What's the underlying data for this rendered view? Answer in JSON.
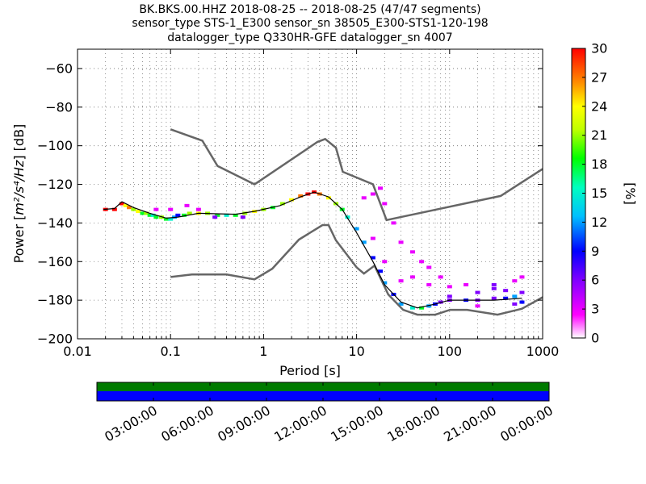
{
  "chart_data": {
    "type": "heatmap",
    "title_lines": [
      "BK.BKS.00.HHZ   2018-08-25 -- 2018-08-25  (47/47 segments)",
      "sensor_type STS-1_E300 sensor_sn 38505_E300-STS1-120-198",
      "datalogger_type Q330HR-GFE datalogger_sn 4007"
    ],
    "xlabel": "Period [s]",
    "ylabel_prefix": "Power [",
    "ylabel_math": "m²/s⁴/Hz",
    "ylabel_suffix": "] [dB]",
    "xscale": "log",
    "xlim": [
      0.01,
      1000
    ],
    "x_ticks": [
      {
        "value": 0.01,
        "label": "0.01"
      },
      {
        "value": 0.1,
        "label": "0.1"
      },
      {
        "value": 1,
        "label": "1"
      },
      {
        "value": 10,
        "label": "10"
      },
      {
        "value": 100,
        "label": "100"
      },
      {
        "value": 1000,
        "label": "1000"
      }
    ],
    "ylim": [
      -200,
      -50
    ],
    "y_ticks": [
      {
        "value": -60,
        "label": "−60"
      },
      {
        "value": -80,
        "label": "−80"
      },
      {
        "value": -100,
        "label": "−100"
      },
      {
        "value": -120,
        "label": "−120"
      },
      {
        "value": -140,
        "label": "−140"
      },
      {
        "value": -160,
        "label": "−160"
      },
      {
        "value": -180,
        "label": "−180"
      },
      {
        "value": -200,
        "label": "−200"
      }
    ],
    "grid": true,
    "colorbar": {
      "label": "[%]",
      "range": [
        0,
        30
      ],
      "ticks": [
        {
          "value": 0,
          "label": "0"
        },
        {
          "value": 3,
          "label": "3"
        },
        {
          "value": 6,
          "label": "6"
        },
        {
          "value": 9,
          "label": "9"
        },
        {
          "value": 12,
          "label": "12"
        },
        {
          "value": 15,
          "label": "15"
        },
        {
          "value": 18,
          "label": "18"
        },
        {
          "value": 21,
          "label": "21"
        },
        {
          "value": 24,
          "label": "24"
        },
        {
          "value": 27,
          "label": "27"
        },
        {
          "value": 30,
          "label": "30"
        }
      ]
    },
    "noise_models": {
      "color": "#666666",
      "high": [
        [
          0.1,
          -91.5
        ],
        [
          0.22,
          -97.4
        ],
        [
          0.32,
          -110.5
        ],
        [
          0.8,
          -120
        ],
        [
          3.8,
          -98
        ],
        [
          4.6,
          -96.5
        ],
        [
          6,
          -101
        ],
        [
          7.1,
          -113.5
        ],
        [
          15,
          -120
        ],
        [
          21,
          -138.5
        ],
        [
          354,
          -126
        ],
        [
          1000,
          -112
        ]
      ],
      "low": [
        [
          0.1,
          -168
        ],
        [
          0.17,
          -166.7
        ],
        [
          0.4,
          -166.7
        ],
        [
          0.8,
          -169.2
        ],
        [
          1.24,
          -163.7
        ],
        [
          2.4,
          -148.6
        ],
        [
          4.3,
          -141.1
        ],
        [
          5,
          -141.1
        ],
        [
          6,
          -149
        ],
        [
          10,
          -163
        ],
        [
          12,
          -166.2
        ],
        [
          15.6,
          -162.1
        ],
        [
          21.9,
          -177
        ],
        [
          31.6,
          -185
        ],
        [
          45,
          -187.5
        ],
        [
          70,
          -187.5
        ],
        [
          101,
          -185
        ],
        [
          154,
          -185
        ],
        [
          328,
          -187.5
        ],
        [
          600,
          -184.4
        ],
        [
          1000,
          -178.5
        ]
      ]
    },
    "mode_curve": [
      [
        0.019,
        -133
      ],
      [
        0.025,
        -132.5
      ],
      [
        0.03,
        -129
      ],
      [
        0.04,
        -132
      ],
      [
        0.06,
        -135
      ],
      [
        0.09,
        -137.5
      ],
      [
        0.12,
        -137
      ],
      [
        0.2,
        -135
      ],
      [
        0.5,
        -135.5
      ],
      [
        0.8,
        -134
      ],
      [
        1.5,
        -131
      ],
      [
        2.5,
        -126.5
      ],
      [
        3.5,
        -124
      ],
      [
        5,
        -126.5
      ],
      [
        7,
        -133
      ],
      [
        10,
        -145
      ],
      [
        15,
        -160
      ],
      [
        20,
        -172
      ],
      [
        30,
        -181
      ],
      [
        45,
        -184
      ],
      [
        70,
        -182
      ],
      [
        100,
        -180
      ],
      [
        300,
        -180
      ],
      [
        600,
        -179
      ]
    ],
    "density_cells": [
      {
        "period": 0.02,
        "db": -133,
        "percent": 30
      },
      {
        "period": 0.025,
        "db": -133,
        "percent": 30
      },
      {
        "period": 0.03,
        "db": -130,
        "percent": 30
      },
      {
        "period": 0.033,
        "db": -131,
        "percent": 24
      },
      {
        "period": 0.036,
        "db": -132,
        "percent": 27
      },
      {
        "period": 0.04,
        "db": -133,
        "percent": 21
      },
      {
        "period": 0.045,
        "db": -134,
        "percent": 24
      },
      {
        "period": 0.05,
        "db": -135,
        "percent": 18
      },
      {
        "period": 0.055,
        "db": -135,
        "percent": 21
      },
      {
        "period": 0.06,
        "db": -136,
        "percent": 18
      },
      {
        "period": 0.065,
        "db": -136,
        "percent": 15
      },
      {
        "period": 0.07,
        "db": -137,
        "percent": 18
      },
      {
        "period": 0.08,
        "db": -137,
        "percent": 21
      },
      {
        "period": 0.09,
        "db": -138,
        "percent": 18
      },
      {
        "period": 0.1,
        "db": -138,
        "percent": 15
      },
      {
        "period": 0.11,
        "db": -137,
        "percent": 12
      },
      {
        "period": 0.12,
        "db": -136,
        "percent": 9
      },
      {
        "period": 0.14,
        "db": -136,
        "percent": 18
      },
      {
        "period": 0.16,
        "db": -135,
        "percent": 21
      },
      {
        "period": 0.2,
        "db": -135,
        "percent": 24
      },
      {
        "period": 0.25,
        "db": -135,
        "percent": 21
      },
      {
        "period": 0.32,
        "db": -136,
        "percent": 18
      },
      {
        "period": 0.4,
        "db": -136,
        "percent": 15
      },
      {
        "period": 0.5,
        "db": -136,
        "percent": 18
      },
      {
        "period": 0.63,
        "db": -135,
        "percent": 21
      },
      {
        "period": 0.8,
        "db": -134,
        "percent": 24
      },
      {
        "period": 1,
        "db": -133,
        "percent": 21
      },
      {
        "period": 1.26,
        "db": -132,
        "percent": 18
      },
      {
        "period": 1.6,
        "db": -130,
        "percent": 21
      },
      {
        "period": 2,
        "db": -128,
        "percent": 24
      },
      {
        "period": 2.5,
        "db": -126,
        "percent": 27
      },
      {
        "period": 3,
        "db": -125,
        "percent": 30
      },
      {
        "period": 3.5,
        "db": -124,
        "percent": 30
      },
      {
        "period": 4,
        "db": -125,
        "percent": 27
      },
      {
        "period": 5,
        "db": -127,
        "percent": 24
      },
      {
        "period": 6,
        "db": -130,
        "percent": 21
      },
      {
        "period": 7,
        "db": -133,
        "percent": 18
      },
      {
        "period": 8,
        "db": -137,
        "percent": 15
      },
      {
        "period": 10,
        "db": -143,
        "percent": 12
      },
      {
        "period": 12,
        "db": -150,
        "percent": 12
      },
      {
        "period": 15,
        "db": -158,
        "percent": 9
      },
      {
        "period": 18,
        "db": -165,
        "percent": 9
      },
      {
        "period": 20,
        "db": -171,
        "percent": 12
      },
      {
        "period": 25,
        "db": -177,
        "percent": 9
      },
      {
        "period": 30,
        "db": -182,
        "percent": 12
      },
      {
        "period": 40,
        "db": -184,
        "percent": 15
      },
      {
        "period": 50,
        "db": -184,
        "percent": 18
      },
      {
        "period": 60,
        "db": -183,
        "percent": 12
      },
      {
        "period": 70,
        "db": -182,
        "percent": 9
      },
      {
        "period": 80,
        "db": -181,
        "percent": 6
      },
      {
        "period": 100,
        "db": -180,
        "percent": 6
      },
      {
        "period": 150,
        "db": -180,
        "percent": 9
      },
      {
        "period": 200,
        "db": -180,
        "percent": 6
      },
      {
        "period": 300,
        "db": -179,
        "percent": 6
      },
      {
        "period": 400,
        "db": -179,
        "percent": 9
      },
      {
        "period": 500,
        "db": -178,
        "percent": 12
      },
      {
        "period": 600,
        "db": -176,
        "percent": 6
      },
      {
        "period": 0.07,
        "db": -133,
        "percent": 3
      },
      {
        "period": 0.1,
        "db": -133,
        "percent": 3
      },
      {
        "period": 0.15,
        "db": -131,
        "percent": 3
      },
      {
        "period": 0.2,
        "db": -133,
        "percent": 3
      },
      {
        "period": 0.3,
        "db": -137,
        "percent": 6
      },
      {
        "period": 0.6,
        "db": -137,
        "percent": 6
      },
      {
        "period": 12,
        "db": -127,
        "percent": 3
      },
      {
        "period": 15,
        "db": -125,
        "percent": 3
      },
      {
        "period": 18,
        "db": -122,
        "percent": 3
      },
      {
        "period": 20,
        "db": -130,
        "percent": 3
      },
      {
        "period": 25,
        "db": -140,
        "percent": 3
      },
      {
        "period": 30,
        "db": -150,
        "percent": 3
      },
      {
        "period": 40,
        "db": -155,
        "percent": 3
      },
      {
        "period": 50,
        "db": -160,
        "percent": 3
      },
      {
        "period": 60,
        "db": -163,
        "percent": 3
      },
      {
        "period": 80,
        "db": -168,
        "percent": 3
      },
      {
        "period": 40,
        "db": -168,
        "percent": 3
      },
      {
        "period": 60,
        "db": -172,
        "percent": 3
      },
      {
        "period": 100,
        "db": -173,
        "percent": 3
      },
      {
        "period": 150,
        "db": -172,
        "percent": 3
      },
      {
        "period": 300,
        "db": -174,
        "percent": 6
      },
      {
        "period": 500,
        "db": -170,
        "percent": 3
      },
      {
        "period": 600,
        "db": -168,
        "percent": 3
      },
      {
        "period": 30,
        "db": -170,
        "percent": 3
      },
      {
        "period": 20,
        "db": -160,
        "percent": 3
      },
      {
        "period": 15,
        "db": -148,
        "percent": 3
      },
      {
        "period": 100,
        "db": -178,
        "percent": 6
      },
      {
        "period": 200,
        "db": -176,
        "percent": 6
      },
      {
        "period": 300,
        "db": -172,
        "percent": 6
      },
      {
        "period": 600,
        "db": -181,
        "percent": 9
      },
      {
        "period": 500,
        "db": -182,
        "percent": 6
      },
      {
        "period": 400,
        "db": -175,
        "percent": 6
      },
      {
        "period": 200,
        "db": -183,
        "percent": 3
      }
    ]
  },
  "timeline": {
    "labels": [
      "03:00:00",
      "06:00:00",
      "09:00:00",
      "12:00:00",
      "15:00:00",
      "18:00:00",
      "21:00:00",
      "00:00:00"
    ],
    "top_color": "#007a00",
    "bottom_color": "#0000ff"
  }
}
